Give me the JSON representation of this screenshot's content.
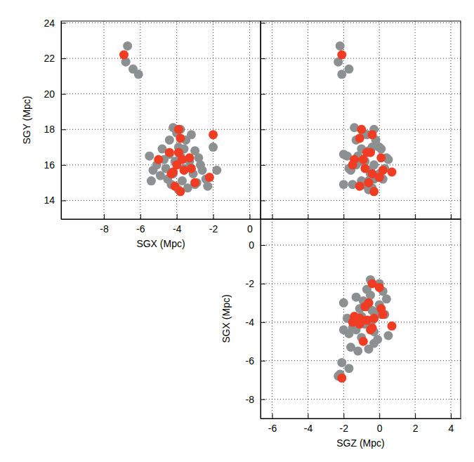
{
  "chart_data": [
    {
      "type": "scatter",
      "x_label": "SGX (Mpc)",
      "y_label": "SGY (Mpc)",
      "xlim": [
        -10.35,
        0.6
      ],
      "xticks": [
        -8,
        -6,
        -4,
        -2,
        0
      ],
      "ylim": [
        12.95,
        24.1
      ],
      "yticks": [
        14,
        16,
        18,
        20,
        22,
        24
      ],
      "grid": true,
      "series": [
        {
          "color": "#8c9091",
          "x": [
            -6.7,
            -6.8,
            -6.4,
            -6.1,
            -5.5,
            -5.3,
            -4.8,
            -4.5,
            -4.4,
            -4.2,
            -4.0,
            -3.9,
            -3.8,
            -3.6,
            -3.5,
            -3.3,
            -3.1,
            -3.0,
            -2.8,
            -2.6,
            -2.4,
            -2.3,
            -2.0,
            -1.8,
            -4.6,
            -4.3,
            -4.1,
            -3.9,
            -3.7,
            -3.4,
            -3.2,
            -2.9,
            -4.7,
            -4.9,
            -5.1,
            -3.6,
            -4.2,
            -2.7,
            -3.0,
            -4.4,
            -5.4,
            -3.8
          ],
          "values": [
            22.7,
            21.8,
            21.4,
            21.1,
            16.5,
            15.7,
            16.9,
            15.2,
            17.4,
            18.1,
            17.8,
            17.0,
            16.5,
            15.8,
            17.4,
            16.2,
            15.5,
            16.8,
            16.4,
            15.7,
            15.2,
            14.8,
            17.0,
            15.7,
            15.8,
            14.9,
            16.2,
            14.6,
            15.1,
            14.7,
            17.7,
            15.0,
            16.3,
            15.4,
            16.0,
            16.9,
            15.5,
            16.0,
            14.9,
            16.6,
            15.1,
            18.0
          ]
        },
        {
          "color": "#f03c22",
          "x": [
            -6.9,
            -3.9,
            -3.8,
            -3.9,
            -4.4,
            -3.7,
            -3.2,
            -4.3,
            -3.6,
            -4.1,
            -3.8,
            -3.0,
            -5.0,
            -4.2,
            -2.0,
            -3.3,
            -4.0,
            -2.2
          ],
          "values": [
            22.2,
            18.0,
            17.5,
            16.7,
            16.7,
            16.3,
            15.8,
            15.5,
            15.7,
            14.8,
            14.5,
            15.0,
            16.3,
            15.6,
            17.7,
            16.4,
            16.0,
            15.3
          ]
        }
      ]
    },
    {
      "type": "scatter",
      "tick_labels": false,
      "xlim": [
        -6.65,
        4.55
      ],
      "xticks": [
        -6,
        -4,
        -2,
        0,
        2,
        4
      ],
      "ylim": [
        12.95,
        24.1
      ],
      "yticks": [
        14,
        16,
        18,
        20,
        22,
        24
      ],
      "grid": true,
      "series": [
        {
          "color": "#8c9091",
          "x": [
            -2.2,
            -2.3,
            -1.7,
            -2.1,
            -1.2,
            -1.6,
            -1.0,
            -0.3,
            -1.3,
            -1.4,
            -0.9,
            -0.4,
            -1.8,
            0.3,
            -0.2,
            -1.1,
            0.0,
            -0.6,
            0.4,
            -0.5,
            0.2,
            -0.7,
            0.0,
            -0.5,
            -1.7,
            -1.5,
            -0.8,
            -0.6,
            -1.0,
            -0.4,
            -0.7,
            -0.9,
            0.5,
            -0.1,
            -0.3,
            0.1,
            -0.5,
            -1.3,
            -2.0,
            -2.0,
            -0.6,
            -0.3
          ],
          "values": [
            22.7,
            21.8,
            21.4,
            21.1,
            16.5,
            15.7,
            16.9,
            15.2,
            17.4,
            18.1,
            17.8,
            17.0,
            16.5,
            15.8,
            17.4,
            16.2,
            15.5,
            16.8,
            16.4,
            15.7,
            15.2,
            14.8,
            17.0,
            15.7,
            15.8,
            14.9,
            16.2,
            14.6,
            15.1,
            14.7,
            17.7,
            15.0,
            16.3,
            15.4,
            16.0,
            16.9,
            15.5,
            16.0,
            14.9,
            16.6,
            15.1,
            18.0
          ]
        },
        {
          "color": "#f03c22",
          "x": [
            -2.1,
            -1.0,
            -1.1,
            -0.7,
            -0.5,
            -1.4,
            -0.8,
            -0.4,
            0.2,
            -1.1,
            -0.3,
            -0.6,
            -0.9,
            0.7,
            -0.4,
            0.1,
            -1.5,
            0.0
          ],
          "values": [
            22.2,
            18.0,
            17.5,
            16.7,
            16.7,
            16.3,
            15.8,
            15.5,
            15.7,
            14.8,
            14.5,
            15.0,
            16.3,
            15.6,
            17.7,
            16.4,
            16.0,
            15.3
          ]
        }
      ]
    },
    {
      "type": "scatter",
      "x_label": "SGZ (Mpc)",
      "y_label": "SGX (Mpc)",
      "xlim": [
        -6.65,
        4.55
      ],
      "xticks": [
        -6,
        -4,
        -2,
        0,
        2,
        4
      ],
      "ylim": [
        -9.0,
        1.35
      ],
      "yticks": [
        -8,
        -6,
        -4,
        -2,
        0
      ],
      "grid": true,
      "series": [
        {
          "color": "#8c9091",
          "x": [
            -2.2,
            -2.3,
            -1.7,
            -2.1,
            -1.2,
            -1.6,
            -1.0,
            -0.3,
            -1.3,
            -1.4,
            -0.9,
            -0.4,
            -1.8,
            0.3,
            -0.2,
            -1.1,
            0.0,
            -0.6,
            0.4,
            -0.5,
            0.2,
            -0.7,
            0.0,
            -0.5,
            -1.7,
            -1.5,
            -0.8,
            -0.6,
            -1.0,
            -0.4,
            -0.7,
            -0.9,
            0.5,
            -0.1,
            -0.3,
            0.1,
            -0.5,
            -1.3,
            -2.0,
            -2.0,
            -0.6,
            -0.3
          ],
          "values": [
            -6.7,
            -6.8,
            -6.4,
            -6.1,
            -5.5,
            -5.3,
            -4.8,
            -4.5,
            -4.4,
            -4.2,
            -4.0,
            -3.9,
            -3.8,
            -3.6,
            -3.5,
            -3.3,
            -3.1,
            -3.0,
            -2.8,
            -2.6,
            -2.4,
            -2.3,
            -2.0,
            -1.8,
            -4.6,
            -4.3,
            -4.1,
            -3.9,
            -3.7,
            -3.4,
            -3.2,
            -2.9,
            -4.7,
            -4.9,
            -5.1,
            -3.6,
            -4.2,
            -2.7,
            -3.0,
            -4.4,
            -5.4,
            -3.8
          ]
        },
        {
          "color": "#f03c22",
          "x": [
            -2.1,
            -1.0,
            -1.1,
            -0.7,
            -0.5,
            -1.4,
            -0.8,
            -0.4,
            0.2,
            -1.1,
            -0.3,
            -0.6,
            -0.9,
            0.7,
            -0.4,
            0.1,
            -1.5,
            0.0
          ],
          "values": [
            -6.9,
            -3.9,
            -3.8,
            -3.9,
            -4.4,
            -3.7,
            -3.2,
            -4.3,
            -3.6,
            -4.1,
            -3.8,
            -3.0,
            -5.0,
            -4.2,
            -2.0,
            -3.3,
            -4.0,
            -2.2
          ]
        }
      ]
    }
  ]
}
